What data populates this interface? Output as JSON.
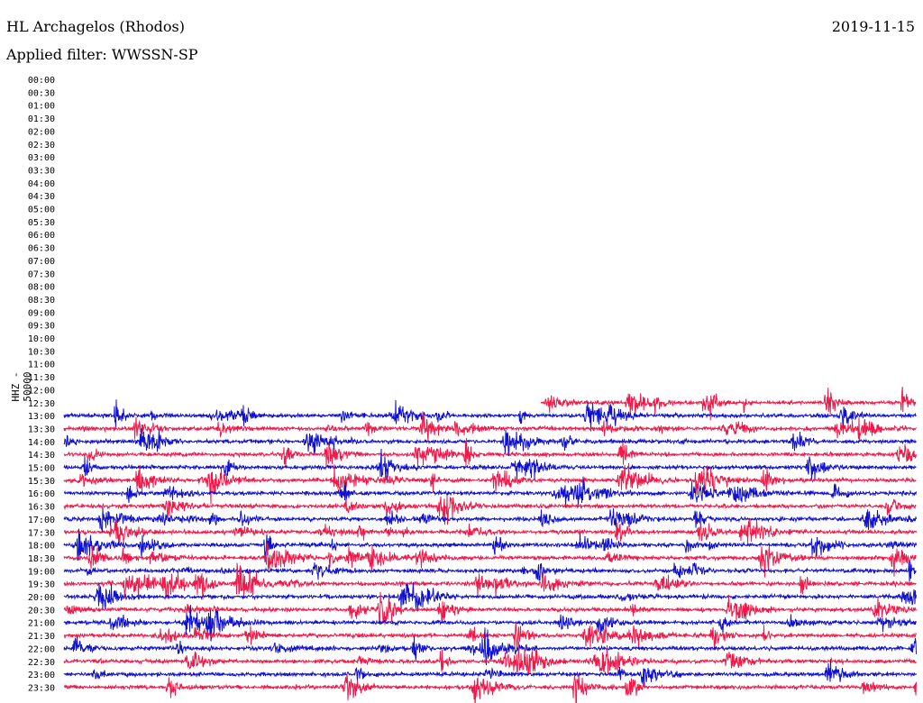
{
  "header": {
    "station": "HL Archagelos (Rhodos)",
    "filter": "Applied filter: WWSSN-SP",
    "date": "2019-11-15"
  },
  "axis": {
    "ylabel": "HHZ - 50000"
  },
  "colors": {
    "trace_a": "#1010d0",
    "trace_b": "#f01848",
    "text": "#000000"
  },
  "chart_data": {
    "type": "line",
    "title": "",
    "ylabel": "HHZ - 50000",
    "row_labels": [
      "00:00",
      "00:30",
      "01:00",
      "01:30",
      "02:00",
      "02:30",
      "03:00",
      "03:30",
      "04:00",
      "04:30",
      "05:00",
      "05:30",
      "06:00",
      "06:30",
      "07:00",
      "07:30",
      "08:00",
      "08:30",
      "09:00",
      "09:30",
      "10:00",
      "10:30",
      "11:00",
      "11:30",
      "12:00",
      "12:30",
      "13:00",
      "13:30",
      "14:00",
      "14:30",
      "15:00",
      "15:30",
      "16:00",
      "16:30",
      "17:00",
      "17:30",
      "18:00",
      "18:30",
      "19:00",
      "19:30",
      "20:00",
      "20:30",
      "21:00",
      "21:30",
      "22:00",
      "22:30",
      "23:00",
      "23:30"
    ],
    "data_start_row": "12:30",
    "data_start_fraction_of_row": 0.56,
    "trace_color_order": [
      "red",
      "blue"
    ],
    "window_minutes": 30
  }
}
